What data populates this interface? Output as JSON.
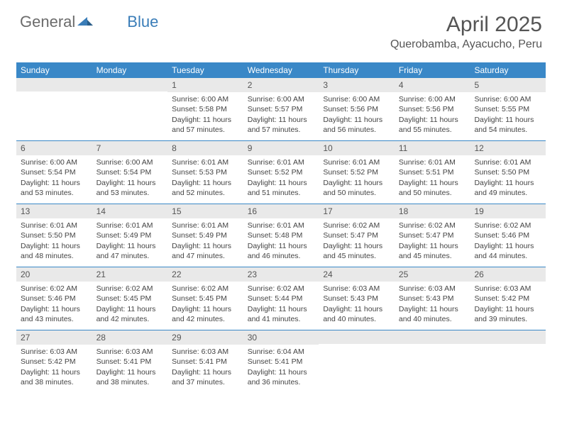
{
  "logo": {
    "part1": "General",
    "part2": "Blue"
  },
  "title": "April 2025",
  "location": "Querobamba, Ayacucho, Peru",
  "colors": {
    "header_blue": "#3a88c7",
    "daynum_bg": "#e9e9e9",
    "logo_gray": "#6b6b6b",
    "logo_blue": "#3a7db8"
  },
  "days_of_week": [
    "Sunday",
    "Monday",
    "Tuesday",
    "Wednesday",
    "Thursday",
    "Friday",
    "Saturday"
  ],
  "weeks": [
    [
      null,
      null,
      {
        "n": "1",
        "sr": "6:00 AM",
        "ss": "5:58 PM",
        "dl": "11 hours and 57 minutes."
      },
      {
        "n": "2",
        "sr": "6:00 AM",
        "ss": "5:57 PM",
        "dl": "11 hours and 57 minutes."
      },
      {
        "n": "3",
        "sr": "6:00 AM",
        "ss": "5:56 PM",
        "dl": "11 hours and 56 minutes."
      },
      {
        "n": "4",
        "sr": "6:00 AM",
        "ss": "5:56 PM",
        "dl": "11 hours and 55 minutes."
      },
      {
        "n": "5",
        "sr": "6:00 AM",
        "ss": "5:55 PM",
        "dl": "11 hours and 54 minutes."
      }
    ],
    [
      {
        "n": "6",
        "sr": "6:00 AM",
        "ss": "5:54 PM",
        "dl": "11 hours and 53 minutes."
      },
      {
        "n": "7",
        "sr": "6:00 AM",
        "ss": "5:54 PM",
        "dl": "11 hours and 53 minutes."
      },
      {
        "n": "8",
        "sr": "6:01 AM",
        "ss": "5:53 PM",
        "dl": "11 hours and 52 minutes."
      },
      {
        "n": "9",
        "sr": "6:01 AM",
        "ss": "5:52 PM",
        "dl": "11 hours and 51 minutes."
      },
      {
        "n": "10",
        "sr": "6:01 AM",
        "ss": "5:52 PM",
        "dl": "11 hours and 50 minutes."
      },
      {
        "n": "11",
        "sr": "6:01 AM",
        "ss": "5:51 PM",
        "dl": "11 hours and 50 minutes."
      },
      {
        "n": "12",
        "sr": "6:01 AM",
        "ss": "5:50 PM",
        "dl": "11 hours and 49 minutes."
      }
    ],
    [
      {
        "n": "13",
        "sr": "6:01 AM",
        "ss": "5:50 PM",
        "dl": "11 hours and 48 minutes."
      },
      {
        "n": "14",
        "sr": "6:01 AM",
        "ss": "5:49 PM",
        "dl": "11 hours and 47 minutes."
      },
      {
        "n": "15",
        "sr": "6:01 AM",
        "ss": "5:49 PM",
        "dl": "11 hours and 47 minutes."
      },
      {
        "n": "16",
        "sr": "6:01 AM",
        "ss": "5:48 PM",
        "dl": "11 hours and 46 minutes."
      },
      {
        "n": "17",
        "sr": "6:02 AM",
        "ss": "5:47 PM",
        "dl": "11 hours and 45 minutes."
      },
      {
        "n": "18",
        "sr": "6:02 AM",
        "ss": "5:47 PM",
        "dl": "11 hours and 45 minutes."
      },
      {
        "n": "19",
        "sr": "6:02 AM",
        "ss": "5:46 PM",
        "dl": "11 hours and 44 minutes."
      }
    ],
    [
      {
        "n": "20",
        "sr": "6:02 AM",
        "ss": "5:46 PM",
        "dl": "11 hours and 43 minutes."
      },
      {
        "n": "21",
        "sr": "6:02 AM",
        "ss": "5:45 PM",
        "dl": "11 hours and 42 minutes."
      },
      {
        "n": "22",
        "sr": "6:02 AM",
        "ss": "5:45 PM",
        "dl": "11 hours and 42 minutes."
      },
      {
        "n": "23",
        "sr": "6:02 AM",
        "ss": "5:44 PM",
        "dl": "11 hours and 41 minutes."
      },
      {
        "n": "24",
        "sr": "6:03 AM",
        "ss": "5:43 PM",
        "dl": "11 hours and 40 minutes."
      },
      {
        "n": "25",
        "sr": "6:03 AM",
        "ss": "5:43 PM",
        "dl": "11 hours and 40 minutes."
      },
      {
        "n": "26",
        "sr": "6:03 AM",
        "ss": "5:42 PM",
        "dl": "11 hours and 39 minutes."
      }
    ],
    [
      {
        "n": "27",
        "sr": "6:03 AM",
        "ss": "5:42 PM",
        "dl": "11 hours and 38 minutes."
      },
      {
        "n": "28",
        "sr": "6:03 AM",
        "ss": "5:41 PM",
        "dl": "11 hours and 38 minutes."
      },
      {
        "n": "29",
        "sr": "6:03 AM",
        "ss": "5:41 PM",
        "dl": "11 hours and 37 minutes."
      },
      {
        "n": "30",
        "sr": "6:04 AM",
        "ss": "5:41 PM",
        "dl": "11 hours and 36 minutes."
      },
      null,
      null,
      null
    ]
  ],
  "labels": {
    "sunrise": "Sunrise:",
    "sunset": "Sunset:",
    "daylight": "Daylight:"
  }
}
